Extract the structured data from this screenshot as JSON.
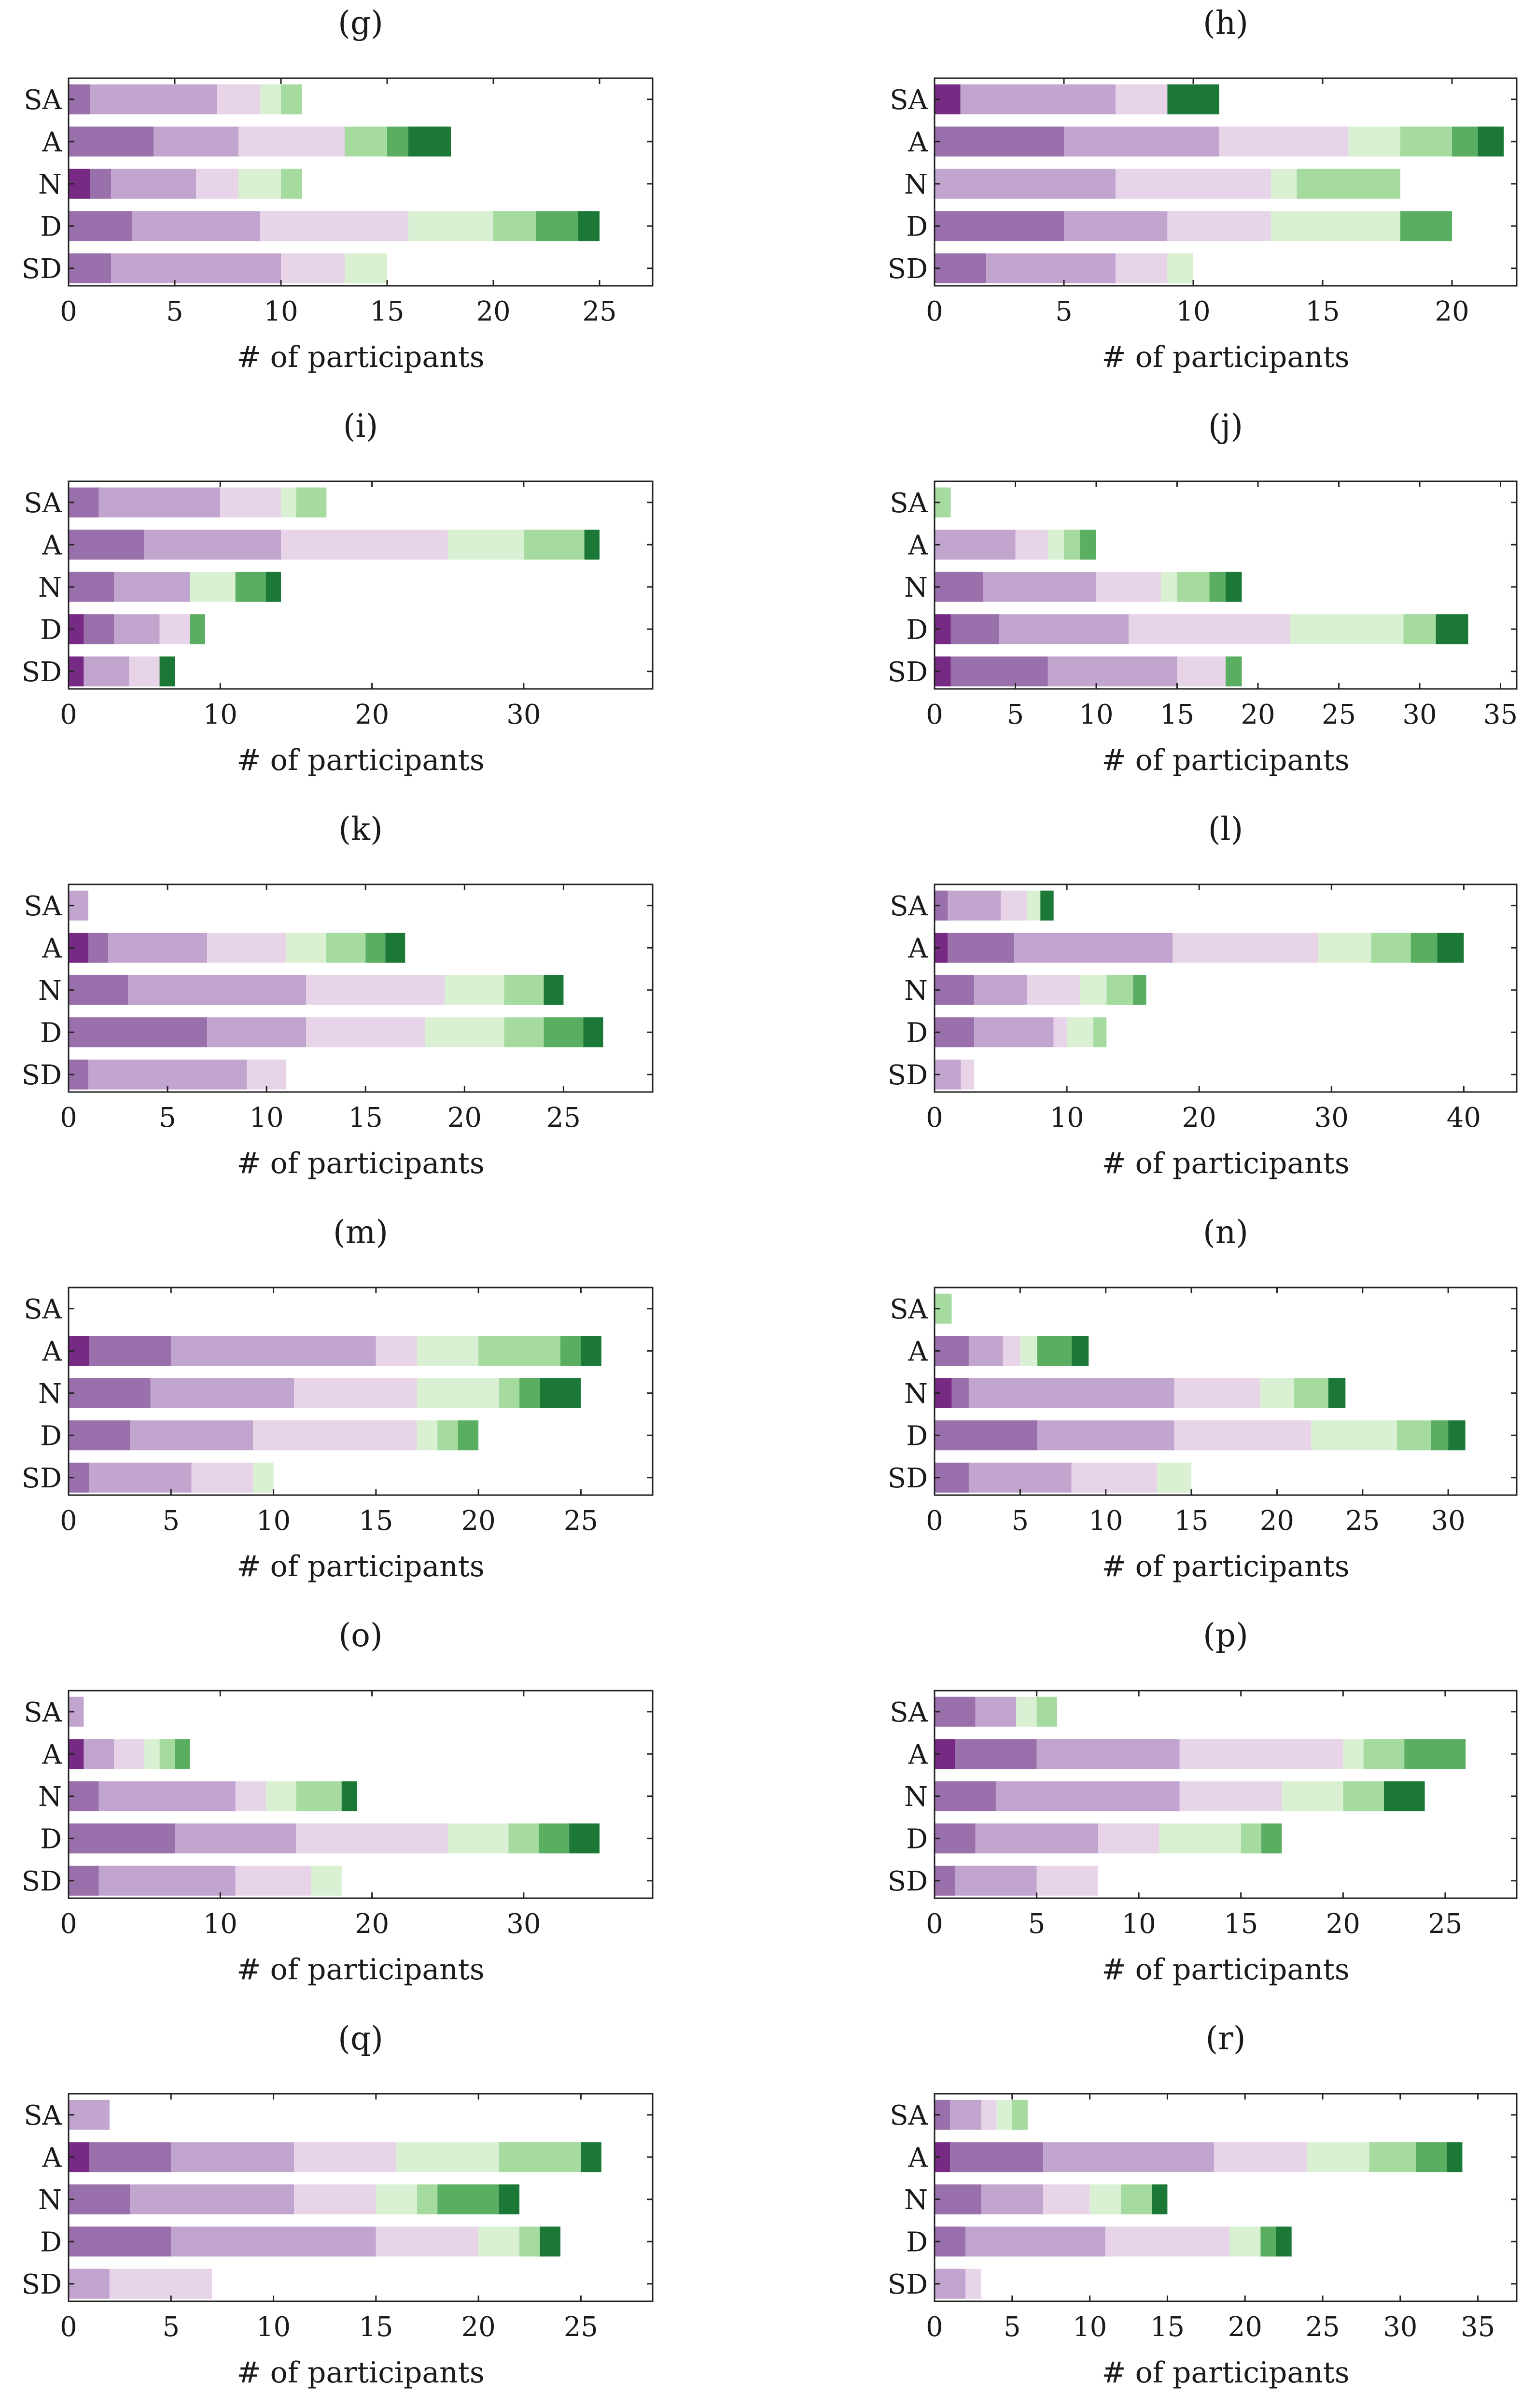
{
  "figure": {
    "xlabel": "# of participants",
    "categories": [
      "SA",
      "A",
      "N",
      "D",
      "SD"
    ],
    "segment_colors": [
      "#762a83",
      "#9970ab",
      "#c2a5cf",
      "#e7d4e8",
      "#d9f0d3",
      "#a6dba0",
      "#5aae61",
      "#1b7837"
    ]
  },
  "chart_data": [
    {
      "type": "bar",
      "panel": "(g)",
      "orientation": "horizontal",
      "stacked": true,
      "categories": [
        "SA",
        "A",
        "N",
        "D",
        "SD"
      ],
      "xlim": [
        0,
        27.5
      ],
      "xticks": [
        0,
        5,
        10,
        15,
        20,
        25
      ],
      "rows": [
        [
          0,
          1,
          6,
          2,
          1,
          1,
          0,
          0
        ],
        [
          0,
          4,
          4,
          5,
          0,
          2,
          1,
          2
        ],
        [
          1,
          1,
          4,
          2,
          2,
          1,
          0,
          0
        ],
        [
          0,
          3,
          6,
          7,
          4,
          2,
          2,
          1
        ],
        [
          0,
          2,
          8,
          3,
          2,
          0,
          0,
          0
        ]
      ]
    },
    {
      "type": "bar",
      "panel": "(h)",
      "orientation": "horizontal",
      "stacked": true,
      "categories": [
        "SA",
        "A",
        "N",
        "D",
        "SD"
      ],
      "xlim": [
        0,
        22.5
      ],
      "xticks": [
        0,
        5,
        10,
        15,
        20
      ],
      "rows": [
        [
          1,
          0,
          6,
          2,
          0,
          0,
          0,
          2
        ],
        [
          0,
          5,
          6,
          5,
          2,
          2,
          1,
          1
        ],
        [
          0,
          0,
          7,
          6,
          1,
          4,
          0,
          0
        ],
        [
          0,
          5,
          4,
          4,
          5,
          0,
          2,
          0
        ],
        [
          0,
          2,
          5,
          2,
          1,
          0,
          0,
          0
        ]
      ]
    },
    {
      "type": "bar",
      "panel": "(i)",
      "orientation": "horizontal",
      "stacked": true,
      "categories": [
        "SA",
        "A",
        "N",
        "D",
        "SD"
      ],
      "xlim": [
        0,
        38.5
      ],
      "xticks": [
        0,
        10,
        20,
        30
      ],
      "rows": [
        [
          0,
          2,
          8,
          4,
          1,
          2,
          0,
          0
        ],
        [
          0,
          5,
          9,
          11,
          5,
          4,
          0,
          1
        ],
        [
          0,
          3,
          5,
          0,
          3,
          0,
          2,
          1
        ],
        [
          1,
          2,
          3,
          2,
          0,
          0,
          1,
          0
        ],
        [
          1,
          0,
          3,
          2,
          0,
          0,
          0,
          1
        ]
      ]
    },
    {
      "type": "bar",
      "panel": "(j)",
      "orientation": "horizontal",
      "stacked": true,
      "categories": [
        "SA",
        "A",
        "N",
        "D",
        "SD"
      ],
      "xlim": [
        0,
        36
      ],
      "xticks": [
        0,
        5,
        10,
        15,
        20,
        25,
        30,
        35
      ],
      "rows": [
        [
          0,
          0,
          0,
          0,
          0,
          1,
          0,
          0
        ],
        [
          0,
          0,
          5,
          2,
          1,
          1,
          1,
          0
        ],
        [
          0,
          3,
          7,
          4,
          1,
          2,
          1,
          1
        ],
        [
          1,
          3,
          8,
          10,
          7,
          2,
          0,
          2
        ],
        [
          1,
          6,
          8,
          3,
          0,
          0,
          1,
          0
        ]
      ]
    },
    {
      "type": "bar",
      "panel": "(k)",
      "orientation": "horizontal",
      "stacked": true,
      "categories": [
        "SA",
        "A",
        "N",
        "D",
        "SD"
      ],
      "xlim": [
        0,
        29.5
      ],
      "xticks": [
        0,
        5,
        10,
        15,
        20,
        25
      ],
      "rows": [
        [
          0,
          0,
          1,
          0,
          0,
          0,
          0,
          0
        ],
        [
          1,
          1,
          5,
          4,
          2,
          2,
          1,
          1
        ],
        [
          0,
          3,
          9,
          7,
          3,
          2,
          0,
          1
        ],
        [
          0,
          7,
          5,
          6,
          4,
          2,
          2,
          1
        ],
        [
          0,
          1,
          8,
          2,
          0,
          0,
          0,
          0
        ]
      ]
    },
    {
      "type": "bar",
      "panel": "(l)",
      "orientation": "horizontal",
      "stacked": true,
      "categories": [
        "SA",
        "A",
        "N",
        "D",
        "SD"
      ],
      "xlim": [
        0,
        44
      ],
      "xticks": [
        0,
        10,
        20,
        30,
        40
      ],
      "rows": [
        [
          0,
          1,
          4,
          2,
          1,
          0,
          0,
          1
        ],
        [
          1,
          5,
          12,
          11,
          4,
          3,
          2,
          2
        ],
        [
          0,
          3,
          4,
          4,
          2,
          2,
          1,
          0
        ],
        [
          0,
          3,
          6,
          1,
          2,
          1,
          0,
          0
        ],
        [
          0,
          0,
          2,
          1,
          0,
          0,
          0,
          0
        ]
      ]
    },
    {
      "type": "bar",
      "panel": "(m)",
      "orientation": "horizontal",
      "stacked": true,
      "categories": [
        "SA",
        "A",
        "N",
        "D",
        "SD"
      ],
      "xlim": [
        0,
        28.5
      ],
      "xticks": [
        0,
        5,
        10,
        15,
        20,
        25
      ],
      "rows": [
        [
          0,
          0,
          0,
          0,
          0,
          0,
          0,
          0
        ],
        [
          1,
          4,
          10,
          2,
          3,
          4,
          1,
          1
        ],
        [
          0,
          4,
          7,
          6,
          4,
          1,
          1,
          2
        ],
        [
          0,
          3,
          6,
          8,
          1,
          1,
          1,
          0
        ],
        [
          0,
          1,
          5,
          3,
          1,
          0,
          0,
          0
        ]
      ]
    },
    {
      "type": "bar",
      "panel": "(n)",
      "orientation": "horizontal",
      "stacked": true,
      "categories": [
        "SA",
        "A",
        "N",
        "D",
        "SD"
      ],
      "xlim": [
        0,
        34
      ],
      "xticks": [
        0,
        5,
        10,
        15,
        20,
        25,
        30
      ],
      "rows": [
        [
          0,
          0,
          0,
          0,
          0,
          1,
          0,
          0
        ],
        [
          0,
          2,
          2,
          1,
          1,
          0,
          2,
          1
        ],
        [
          1,
          1,
          12,
          5,
          2,
          2,
          0,
          1
        ],
        [
          0,
          6,
          8,
          8,
          5,
          2,
          1,
          1
        ],
        [
          0,
          2,
          6,
          5,
          2,
          0,
          0,
          0
        ]
      ]
    },
    {
      "type": "bar",
      "panel": "(o)",
      "orientation": "horizontal",
      "stacked": true,
      "categories": [
        "SA",
        "A",
        "N",
        "D",
        "SD"
      ],
      "xlim": [
        0,
        38.5
      ],
      "xticks": [
        0,
        10,
        20,
        30
      ],
      "rows": [
        [
          0,
          0,
          1,
          0,
          0,
          0,
          0,
          0
        ],
        [
          1,
          0,
          2,
          2,
          1,
          1,
          1,
          0
        ],
        [
          0,
          2,
          9,
          2,
          2,
          3,
          0,
          1
        ],
        [
          0,
          7,
          8,
          10,
          4,
          2,
          2,
          2
        ],
        [
          0,
          2,
          9,
          5,
          2,
          0,
          0,
          0
        ]
      ]
    },
    {
      "type": "bar",
      "panel": "(p)",
      "orientation": "horizontal",
      "stacked": true,
      "categories": [
        "SA",
        "A",
        "N",
        "D",
        "SD"
      ],
      "xlim": [
        0,
        28.5
      ],
      "xticks": [
        0,
        5,
        10,
        15,
        20,
        25
      ],
      "rows": [
        [
          0,
          2,
          2,
          0,
          1,
          1,
          0,
          0
        ],
        [
          1,
          4,
          7,
          8,
          1,
          2,
          3,
          0
        ],
        [
          0,
          3,
          9,
          5,
          3,
          2,
          0,
          2
        ],
        [
          0,
          2,
          6,
          3,
          4,
          1,
          1,
          0
        ],
        [
          0,
          1,
          4,
          3,
          0,
          0,
          0,
          0
        ]
      ]
    },
    {
      "type": "bar",
      "panel": "(q)",
      "orientation": "horizontal",
      "stacked": true,
      "categories": [
        "SA",
        "A",
        "N",
        "D",
        "SD"
      ],
      "xlim": [
        0,
        28.5
      ],
      "xticks": [
        0,
        5,
        10,
        15,
        20,
        25
      ],
      "rows": [
        [
          0,
          0,
          2,
          0,
          0,
          0,
          0,
          0
        ],
        [
          1,
          4,
          6,
          5,
          5,
          4,
          0,
          1
        ],
        [
          0,
          3,
          8,
          4,
          2,
          1,
          3,
          1
        ],
        [
          0,
          5,
          10,
          5,
          2,
          1,
          0,
          1
        ],
        [
          0,
          0,
          2,
          5,
          0,
          0,
          0,
          0
        ]
      ]
    },
    {
      "type": "bar",
      "panel": "(r)",
      "orientation": "horizontal",
      "stacked": true,
      "categories": [
        "SA",
        "A",
        "N",
        "D",
        "SD"
      ],
      "xlim": [
        0,
        37.5
      ],
      "xticks": [
        0,
        5,
        10,
        15,
        20,
        25,
        30,
        35
      ],
      "rows": [
        [
          0,
          1,
          2,
          1,
          1,
          1,
          0,
          0
        ],
        [
          1,
          6,
          11,
          6,
          4,
          3,
          2,
          1
        ],
        [
          0,
          3,
          4,
          3,
          2,
          2,
          0,
          1
        ],
        [
          0,
          2,
          9,
          8,
          2,
          0,
          1,
          1
        ],
        [
          0,
          0,
          2,
          1,
          0,
          0,
          0,
          0
        ]
      ]
    }
  ]
}
